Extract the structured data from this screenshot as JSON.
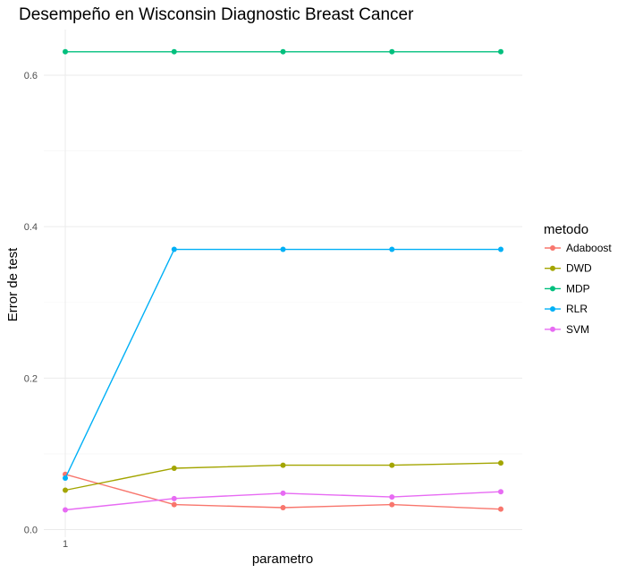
{
  "chart_data": {
    "type": "line",
    "title": "Desempeño en Wisconsin Diagnostic Breast Cancer",
    "xlabel": "parametro",
    "ylabel": "Error de test",
    "x": [
      1,
      2,
      3,
      4,
      5
    ],
    "x_tick_labels": [
      "1"
    ],
    "y_ticks": [
      0.0,
      0.2,
      0.4,
      0.6
    ],
    "y_tick_labels": [
      "0.0",
      "0.2",
      "0.4",
      "0.6"
    ],
    "ylim": [
      0.0,
      0.6
    ],
    "grid": true,
    "legend": {
      "title": "metodo",
      "position": "right"
    },
    "series": [
      {
        "name": "Adaboost",
        "color": "#F8766D",
        "values": [
          0.073,
          0.033,
          0.029,
          0.033,
          0.027
        ]
      },
      {
        "name": "DWD",
        "color": "#A3A500",
        "values": [
          0.052,
          0.081,
          0.085,
          0.085,
          0.088
        ]
      },
      {
        "name": "MDP",
        "color": "#00BF7D",
        "values": [
          0.631,
          0.631,
          0.631,
          0.631,
          0.631
        ]
      },
      {
        "name": "RLR",
        "color": "#00B0F6",
        "values": [
          0.068,
          0.37,
          0.37,
          0.37,
          0.37
        ]
      },
      {
        "name": "SVM",
        "color": "#E76BF3",
        "values": [
          0.026,
          0.041,
          0.048,
          0.043,
          0.05
        ]
      }
    ]
  }
}
